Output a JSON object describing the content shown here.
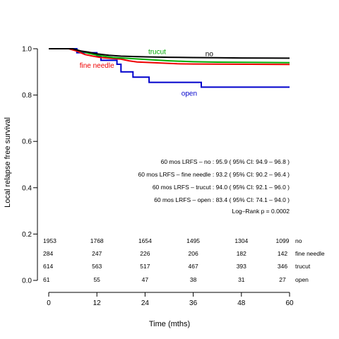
{
  "chart_data": {
    "type": "line",
    "title": "",
    "xlabel": "Time (mths)",
    "ylabel": "Local relapse free survival",
    "xlim": [
      0,
      60
    ],
    "ylim": [
      0,
      1
    ],
    "x_ticks": [
      "0",
      "12",
      "24",
      "36",
      "48",
      "60"
    ],
    "y_ticks": [
      "0.0",
      "0.2",
      "0.4",
      "0.6",
      "0.8",
      "1.0"
    ],
    "grid": false,
    "legend": "none (curves labelled directly)",
    "series": [
      {
        "name": "no",
        "color": "#000000",
        "label_at": [
          40,
          0.98
        ],
        "points": [
          [
            0,
            1.0
          ],
          [
            6,
            1.0
          ],
          [
            8,
            0.99
          ],
          [
            10,
            0.985
          ],
          [
            12,
            0.978
          ],
          [
            15,
            0.972
          ],
          [
            18,
            0.968
          ],
          [
            24,
            0.965
          ],
          [
            30,
            0.963
          ],
          [
            36,
            0.962
          ],
          [
            42,
            0.961
          ],
          [
            48,
            0.96
          ],
          [
            60,
            0.959
          ]
        ]
      },
      {
        "name": "fine needle",
        "color": "#ee0000",
        "label_at": [
          12,
          0.93
        ],
        "points": [
          [
            0,
            1.0
          ],
          [
            5,
            1.0
          ],
          [
            7,
            0.99
          ],
          [
            9,
            0.975
          ],
          [
            11,
            0.968
          ],
          [
            13,
            0.962
          ],
          [
            18,
            0.955
          ],
          [
            20,
            0.948
          ],
          [
            22,
            0.943
          ],
          [
            26,
            0.94
          ],
          [
            32,
            0.935
          ],
          [
            36,
            0.934
          ],
          [
            60,
            0.932
          ]
        ]
      },
      {
        "name": "trucut",
        "color": "#00aa00",
        "label_at": [
          27,
          0.99
        ],
        "points": [
          [
            0,
            1.0
          ],
          [
            6,
            1.0
          ],
          [
            8,
            0.99
          ],
          [
            10,
            0.98
          ],
          [
            12,
            0.972
          ],
          [
            16,
            0.962
          ],
          [
            20,
            0.958
          ],
          [
            24,
            0.954
          ],
          [
            30,
            0.948
          ],
          [
            36,
            0.944
          ],
          [
            42,
            0.942
          ],
          [
            60,
            0.94
          ]
        ]
      },
      {
        "name": "open",
        "color": "#0000cc",
        "label_at": [
          35,
          0.81
        ],
        "points": [
          [
            0,
            1.0
          ],
          [
            7,
            1.0
          ],
          [
            7,
            0.983
          ],
          [
            12,
            0.983
          ],
          [
            12,
            0.967
          ],
          [
            13,
            0.967
          ],
          [
            13,
            0.95
          ],
          [
            17,
            0.95
          ],
          [
            17,
            0.933
          ],
          [
            18,
            0.933
          ],
          [
            18,
            0.9
          ],
          [
            21,
            0.9
          ],
          [
            21,
            0.877
          ],
          [
            25,
            0.877
          ],
          [
            25,
            0.855
          ],
          [
            38,
            0.855
          ],
          [
            38,
            0.834
          ],
          [
            60,
            0.834
          ]
        ]
      }
    ],
    "annotations": [
      "60 mos LRFS  – no : 95.9 ( 95% CI: 94.9 – 96.8 )",
      "60 mos LRFS  – fine needle : 93.2 ( 95% CI: 90.2 – 96.4 )",
      "60 mos LRFS  – trucut : 94.0 ( 95% CI: 92.1 – 96.0 )",
      "60 mos LRFS  – open : 83.4 ( 95% CI: 74.1 – 94.0 )",
      "Log–Rank p = 0.0002"
    ],
    "risk_table": {
      "times": [
        0,
        12,
        24,
        36,
        48,
        60
      ],
      "rows": [
        {
          "name": "no",
          "values": [
            "1953",
            "1768",
            "1654",
            "1495",
            "1304",
            "1099"
          ]
        },
        {
          "name": "fine needle",
          "values": [
            "284",
            "247",
            "226",
            "206",
            "182",
            "142"
          ]
        },
        {
          "name": "trucut",
          "values": [
            "614",
            "563",
            "517",
            "467",
            "393",
            "346"
          ]
        },
        {
          "name": "open",
          "values": [
            "61",
            "55",
            "47",
            "38",
            "31",
            "27"
          ]
        }
      ]
    }
  }
}
